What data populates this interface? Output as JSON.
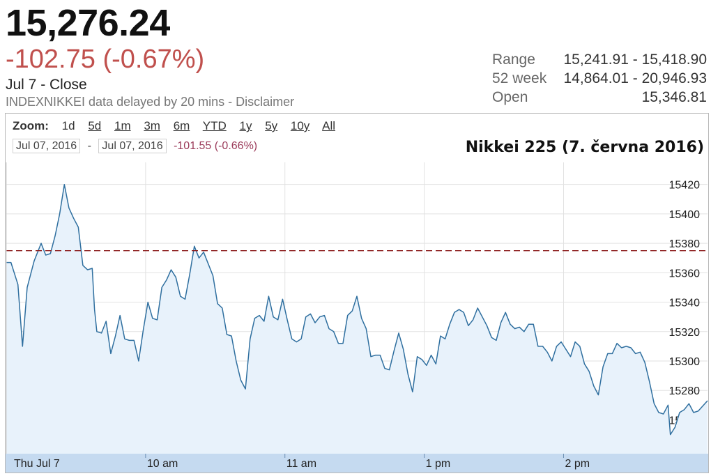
{
  "header": {
    "price": "15,276.24",
    "change": "-102.75 (-0.67%)",
    "close_label": "Jul 7 - Close",
    "delay_note": "INDEXNIKKEI data delayed by 20 mins - Disclaimer"
  },
  "stats": [
    {
      "label": "Range",
      "value": "15,241.91 - 15,418.90"
    },
    {
      "label": "52 week",
      "value": "14,864.01 - 20,946.93"
    },
    {
      "label": "Open",
      "value": "15,346.81"
    }
  ],
  "zoom": {
    "label": "Zoom:",
    "options": [
      "1d",
      "5d",
      "1m",
      "3m",
      "6m",
      "YTD",
      "1y",
      "5y",
      "10y",
      "All"
    ]
  },
  "date_range": {
    "from": "Jul 07, 2016",
    "separator": "-",
    "to": "Jul 07, 2016",
    "change": "-101.55 (-0.66%)"
  },
  "colors": {
    "line": "#2f6f9f",
    "area": "#e8f2fb",
    "reference": "#8b1a1a",
    "axis_band": "#c5daf0",
    "change_negative": "#c0504d"
  },
  "chart_data": {
    "type": "area",
    "title": "Nikkei 225 (7. června 2016)",
    "xlabel": "",
    "ylabel": "",
    "y_ticks": [
      15260,
      15280,
      15300,
      15320,
      15340,
      15360,
      15380,
      15400,
      15420
    ],
    "ylim": [
      15237,
      15435
    ],
    "x_ticks": [
      {
        "label": "Thu Jul 7",
        "t": 0
      },
      {
        "label": "10 am",
        "t": 60
      },
      {
        "label": "11 am",
        "t": 120
      },
      {
        "label": "1 pm",
        "t": 180
      },
      {
        "label": "2 pm",
        "t": 240
      }
    ],
    "xlim": [
      0,
      302
    ],
    "grid": true,
    "reference_line": {
      "value": 15375,
      "style": "dashed"
    },
    "series": [
      {
        "points": [
          [
            0,
            15367
          ],
          [
            2,
            15367
          ],
          [
            5,
            15352
          ],
          [
            7,
            15310
          ],
          [
            9,
            15350
          ],
          [
            12,
            15368
          ],
          [
            15,
            15380
          ],
          [
            17,
            15372
          ],
          [
            19,
            15373
          ],
          [
            21,
            15385
          ],
          [
            23,
            15400
          ],
          [
            25,
            15420
          ],
          [
            27,
            15404
          ],
          [
            29,
            15397
          ],
          [
            31,
            15391
          ],
          [
            33,
            15365
          ],
          [
            35,
            15362
          ],
          [
            37,
            15363
          ],
          [
            38,
            15335
          ],
          [
            39,
            15320
          ],
          [
            41,
            15319
          ],
          [
            43,
            15327
          ],
          [
            45,
            15305
          ],
          [
            47,
            15317
          ],
          [
            49,
            15331
          ],
          [
            51,
            15315
          ],
          [
            53,
            15314
          ],
          [
            55,
            15314
          ],
          [
            57,
            15300
          ],
          [
            59,
            15321
          ],
          [
            61,
            15340
          ],
          [
            63,
            15329
          ],
          [
            65,
            15328
          ],
          [
            67,
            15350
          ],
          [
            69,
            15355
          ],
          [
            71,
            15362
          ],
          [
            73,
            15357
          ],
          [
            75,
            15344
          ],
          [
            77,
            15342
          ],
          [
            79,
            15359
          ],
          [
            81,
            15378
          ],
          [
            83,
            15370
          ],
          [
            85,
            15374
          ],
          [
            87,
            15366
          ],
          [
            89,
            15358
          ],
          [
            91,
            15339
          ],
          [
            93,
            15336
          ],
          [
            95,
            15318
          ],
          [
            97,
            15317
          ],
          [
            99,
            15300
          ],
          [
            101,
            15287
          ],
          [
            103,
            15281
          ],
          [
            105,
            15315
          ],
          [
            107,
            15329
          ],
          [
            109,
            15331
          ],
          [
            111,
            15327
          ],
          [
            113,
            15344
          ],
          [
            115,
            15330
          ],
          [
            117,
            15328
          ],
          [
            119,
            15342
          ],
          [
            121,
            15328
          ],
          [
            123,
            15315
          ],
          [
            125,
            15313
          ],
          [
            127,
            15315
          ],
          [
            129,
            15330
          ],
          [
            131,
            15332
          ],
          [
            133,
            15326
          ],
          [
            135,
            15330
          ],
          [
            137,
            15331
          ],
          [
            139,
            15322
          ],
          [
            141,
            15320
          ],
          [
            143,
            15312
          ],
          [
            145,
            15312
          ],
          [
            147,
            15331
          ],
          [
            149,
            15334
          ],
          [
            151,
            15344
          ],
          [
            153,
            15329
          ],
          [
            155,
            15322
          ],
          [
            157,
            15303
          ],
          [
            159,
            15304
          ],
          [
            161,
            15304
          ],
          [
            163,
            15295
          ],
          [
            165,
            15294
          ],
          [
            167,
            15307
          ],
          [
            169,
            15319
          ],
          [
            171,
            15308
          ],
          [
            173,
            15291
          ],
          [
            175,
            15279
          ],
          [
            177,
            15303
          ],
          [
            179,
            15301
          ],
          [
            181,
            15297
          ],
          [
            183,
            15304
          ],
          [
            185,
            15298
          ],
          [
            187,
            15317
          ],
          [
            189,
            15315
          ],
          [
            191,
            15325
          ],
          [
            193,
            15333
          ],
          [
            195,
            15335
          ],
          [
            197,
            15333
          ],
          [
            199,
            15324
          ],
          [
            201,
            15328
          ],
          [
            203,
            15336
          ],
          [
            205,
            15330
          ],
          [
            207,
            15324
          ],
          [
            209,
            15316
          ],
          [
            211,
            15314
          ],
          [
            213,
            15326
          ],
          [
            215,
            15333
          ],
          [
            217,
            15325
          ],
          [
            219,
            15322
          ],
          [
            221,
            15323
          ],
          [
            223,
            15320
          ],
          [
            225,
            15325
          ],
          [
            227,
            15325
          ],
          [
            229,
            15310
          ],
          [
            231,
            15310
          ],
          [
            233,
            15306
          ],
          [
            235,
            15300
          ],
          [
            237,
            15310
          ],
          [
            239,
            15313
          ],
          [
            241,
            15308
          ],
          [
            243,
            15303
          ],
          [
            245,
            15313
          ],
          [
            247,
            15310
          ],
          [
            249,
            15298
          ],
          [
            251,
            15293
          ],
          [
            253,
            15283
          ],
          [
            255,
            15277
          ],
          [
            257,
            15296
          ],
          [
            259,
            15305
          ],
          [
            261,
            15305
          ],
          [
            263,
            15312
          ],
          [
            265,
            15309
          ],
          [
            267,
            15310
          ],
          [
            269,
            15309
          ],
          [
            271,
            15305
          ],
          [
            273,
            15306
          ],
          [
            275,
            15299
          ],
          [
            277,
            15286
          ],
          [
            279,
            15271
          ],
          [
            281,
            15265
          ],
          [
            283,
            15264
          ],
          [
            285,
            15270
          ],
          [
            286,
            15250
          ],
          [
            288,
            15255
          ],
          [
            290,
            15265
          ],
          [
            292,
            15267
          ],
          [
            294,
            15271
          ],
          [
            296,
            15265
          ],
          [
            298,
            15266
          ],
          [
            302,
            15273
          ]
        ]
      }
    ]
  }
}
